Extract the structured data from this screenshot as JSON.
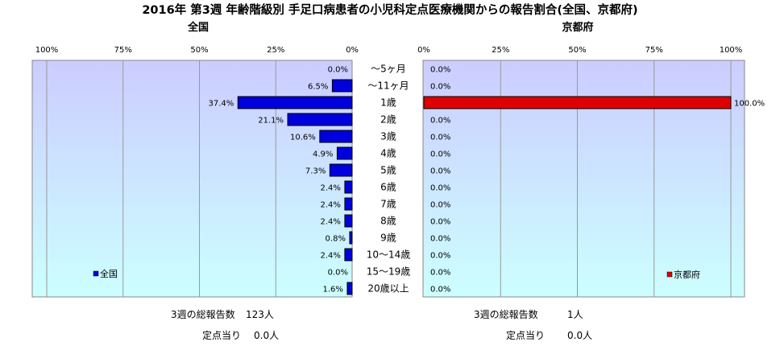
{
  "chart_data": [
    {
      "type": "bar",
      "orientation": "horizontal",
      "direction": "right-to-left",
      "title": "全国",
      "categories": [
        "～5ヶ月",
        "～11ヶ月",
        "1歳",
        "2歳",
        "3歳",
        "4歳",
        "5歳",
        "6歳",
        "7歳",
        "8歳",
        "9歳",
        "10～14歳",
        "15～19歳",
        "20歳以上"
      ],
      "series": [
        {
          "name": "全国",
          "values": [
            0.0,
            6.5,
            37.4,
            21.1,
            10.6,
            4.9,
            7.3,
            2.4,
            2.4,
            2.4,
            0.8,
            2.4,
            0.0,
            1.6
          ],
          "labels": [
            "0.0%",
            "6.5%",
            "37.4%",
            "21.1%",
            "10.6%",
            "4.9%",
            "7.3%",
            "2.4%",
            "2.4%",
            "2.4%",
            "0.8%",
            "2.4%",
            "0.0%",
            "1.6%"
          ]
        }
      ],
      "xlim": [
        0,
        100
      ],
      "xticks": [
        "100%",
        "75%",
        "50%",
        "25%",
        "0%"
      ],
      "legend": "bottom-left",
      "grid": true,
      "bar_color": "#0000dd"
    },
    {
      "type": "bar",
      "orientation": "horizontal",
      "direction": "left-to-right",
      "title": "京都府",
      "categories": [
        "～5ヶ月",
        "～11ヶ月",
        "1歳",
        "2歳",
        "3歳",
        "4歳",
        "5歳",
        "6歳",
        "7歳",
        "8歳",
        "9歳",
        "10～14歳",
        "15～19歳",
        "20歳以上"
      ],
      "series": [
        {
          "name": "京都府",
          "values": [
            0.0,
            0.0,
            100.0,
            0.0,
            0.0,
            0.0,
            0.0,
            0.0,
            0.0,
            0.0,
            0.0,
            0.0,
            0.0,
            0.0
          ],
          "labels": [
            "0.0%",
            "0.0%",
            "100.0%",
            "0.0%",
            "0.0%",
            "0.0%",
            "0.0%",
            "0.0%",
            "0.0%",
            "0.0%",
            "0.0%",
            "0.0%",
            "0.0%",
            "0.0%"
          ]
        }
      ],
      "xlim": [
        0,
        100
      ],
      "xticks": [
        "0%",
        "25%",
        "50%",
        "75%",
        "100%"
      ],
      "legend": "bottom-right",
      "grid": true,
      "bar_color": "#dd0000"
    }
  ],
  "main_title": "2016年 第3週 年齢階級別 手足口病患者の小児科定点医療機関からの報告割合(全国、京都府)",
  "stats": {
    "national": {
      "total_label": "3週の総報告数",
      "total_value": "123人",
      "per_label": "定点当り",
      "per_value": "0.0人"
    },
    "kyoto": {
      "total_label": "3週の総報告数",
      "total_value": "1人",
      "per_label": "定点当り",
      "per_value": "0.0人"
    }
  },
  "colors": {
    "plot_bg_top": "#ccccff",
    "plot_bg_bottom": "#ccffff",
    "grid": "#999999"
  }
}
